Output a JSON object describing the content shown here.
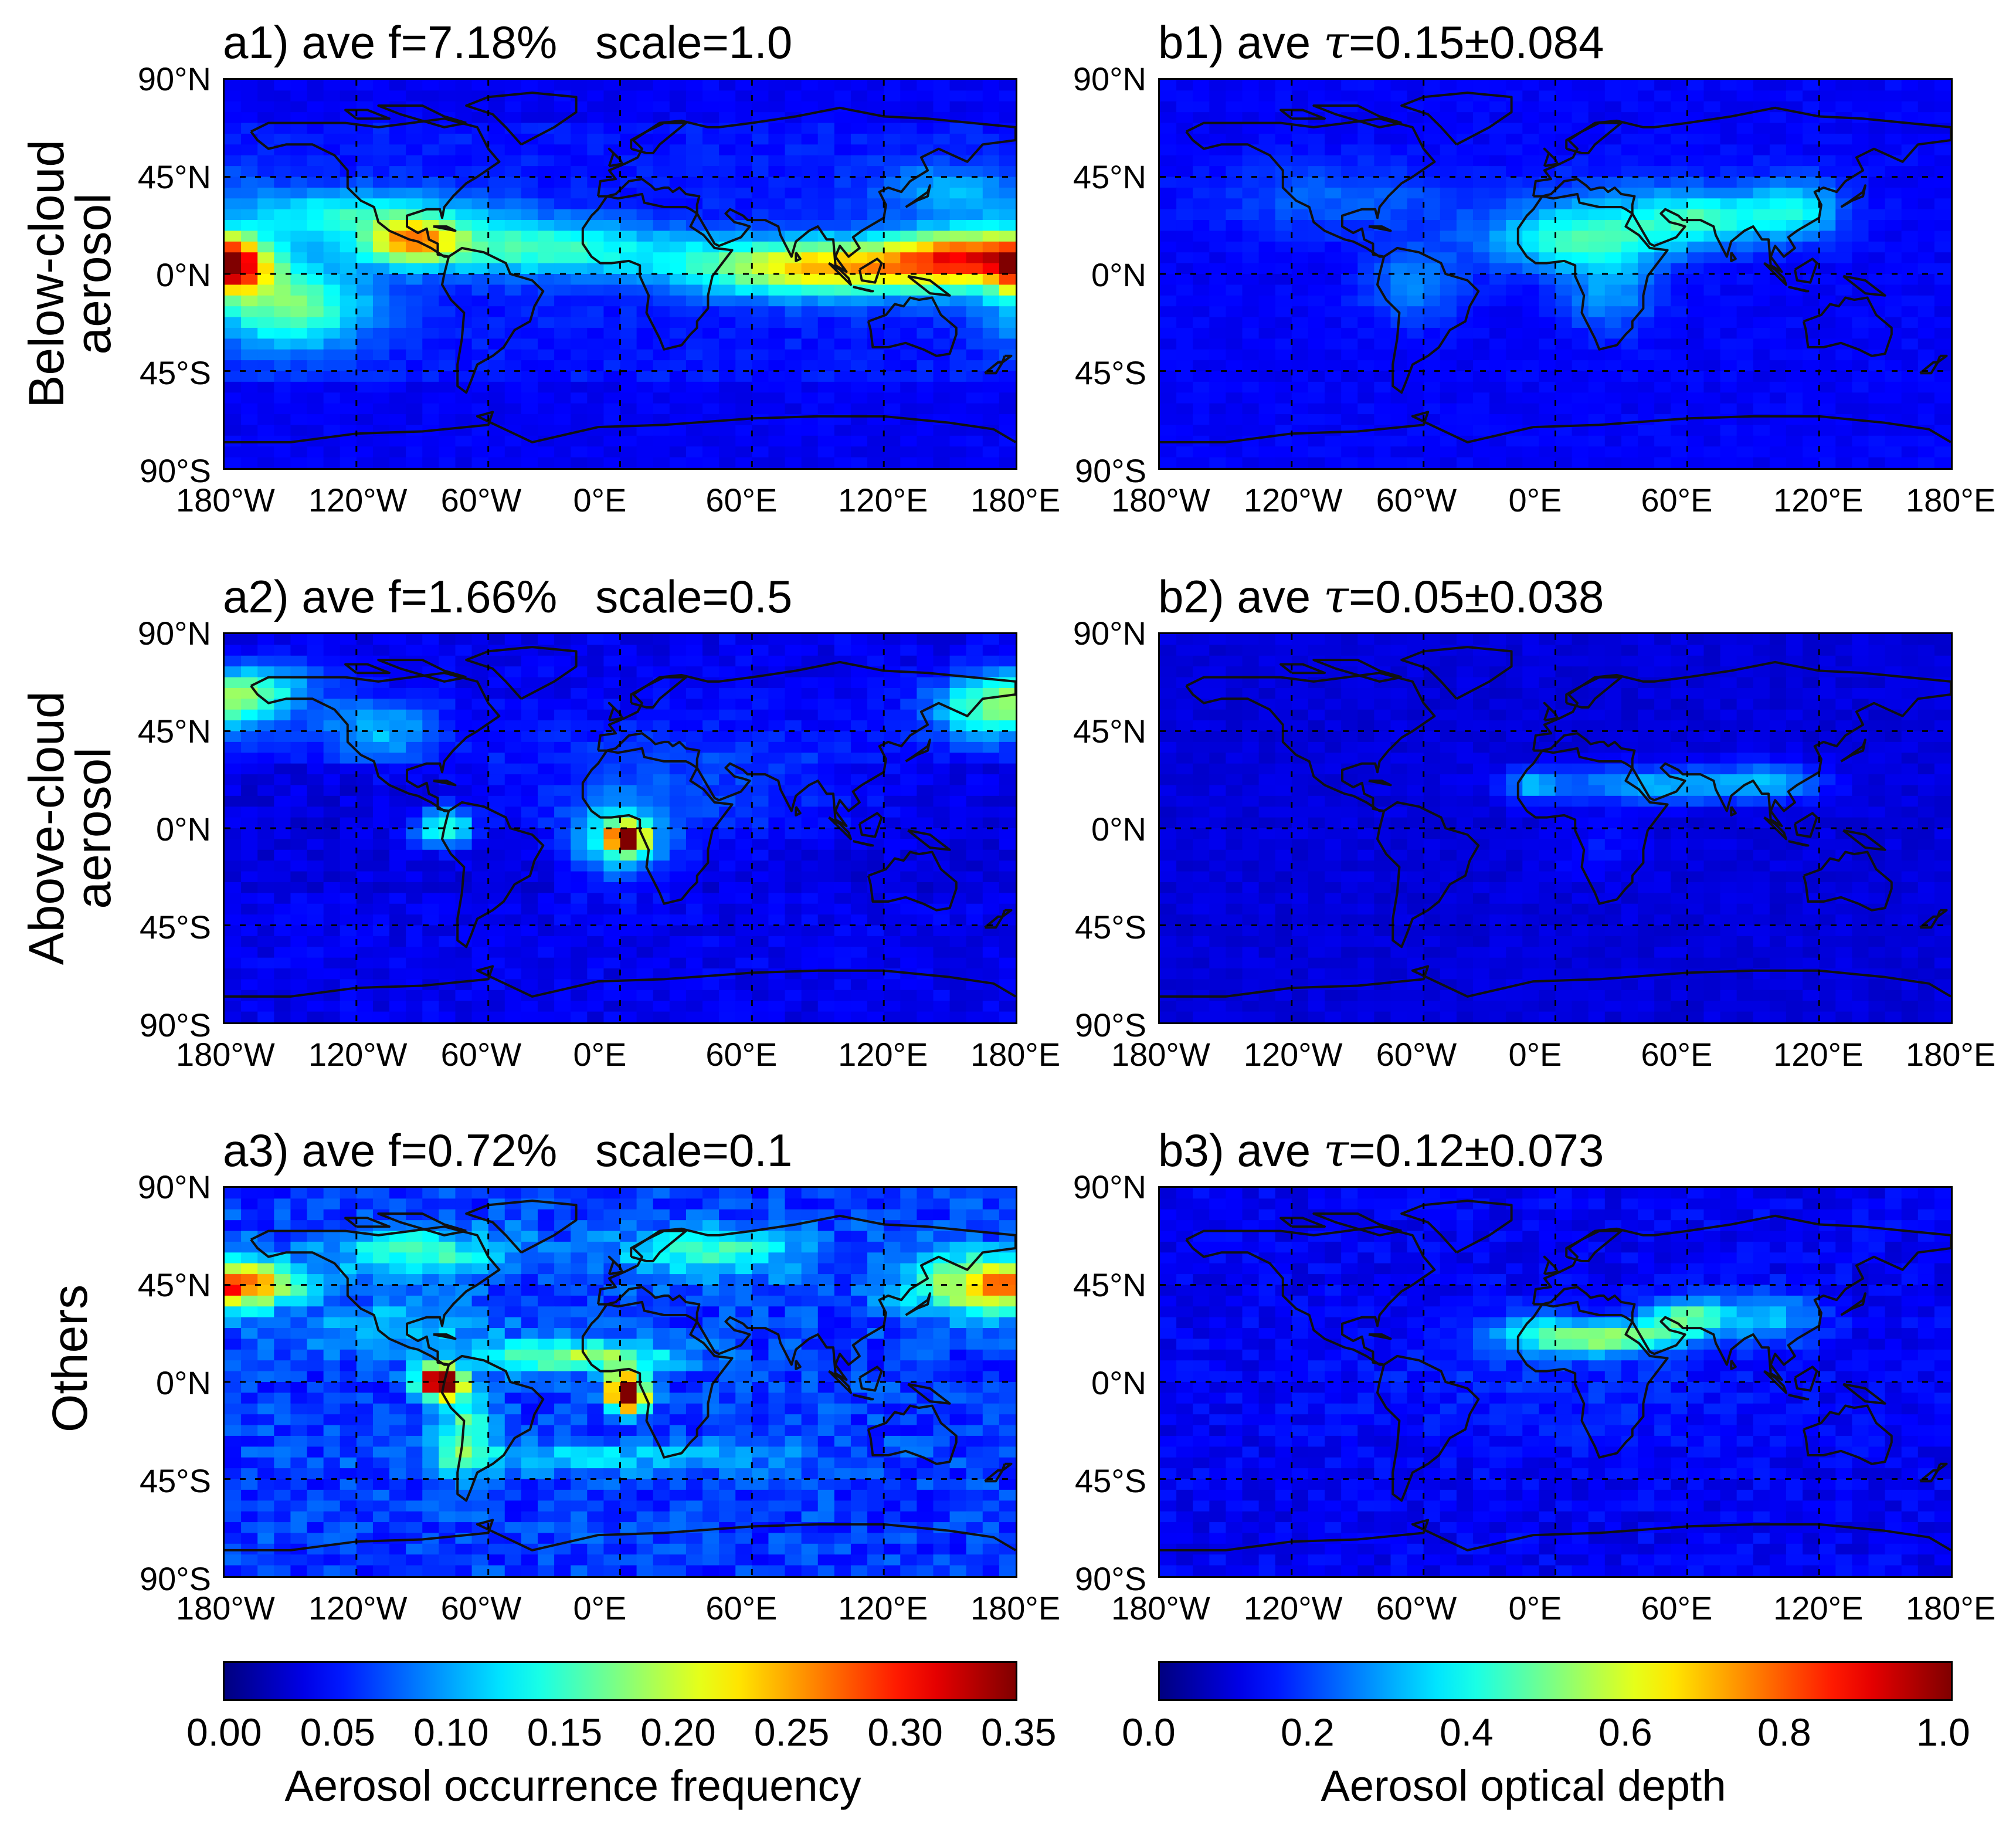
{
  "panels": [
    {
      "id": "a1",
      "col": "a",
      "row": 0,
      "title": "a1) ave f=7.18%   scale=1.0",
      "type": "frequency",
      "pattern": "below"
    },
    {
      "id": "b1",
      "col": "b",
      "row": 0,
      "title_prefix": "b1) ave ",
      "title_tau": "τ",
      "title_suffix": "=0.15±0.084",
      "type": "aod",
      "pattern": "below_aod"
    },
    {
      "id": "a2",
      "col": "a",
      "row": 1,
      "title": "a2) ave f=1.66%   scale=0.5",
      "type": "frequency",
      "pattern": "above"
    },
    {
      "id": "b2",
      "col": "b",
      "row": 1,
      "title_prefix": "b2) ave ",
      "title_tau": "τ",
      "title_suffix": "=0.05±0.038",
      "type": "aod",
      "pattern": "above_aod"
    },
    {
      "id": "a3",
      "col": "a",
      "row": 2,
      "title": "a3) ave f=0.72%   scale=0.1",
      "type": "frequency",
      "pattern": "others"
    },
    {
      "id": "b3",
      "col": "b",
      "row": 2,
      "title_prefix": "b3) ave ",
      "title_tau": "τ",
      "title_suffix": "=0.12±0.073",
      "type": "aod",
      "pattern": "others_aod"
    }
  ],
  "row_labels": [
    {
      "line1": "Below-cloud",
      "line2": "aerosol"
    },
    {
      "line1": "Above-cloud",
      "line2": "aerosol"
    },
    {
      "line1": "Others",
      "line2": ""
    }
  ],
  "lat_ticks": [
    "90°N",
    "45°N",
    "0°N",
    "45°S",
    "90°S"
  ],
  "lon_ticks": [
    "180°W",
    "120°W",
    "60°W",
    "0°E",
    "60°E",
    "120°E",
    "180°E"
  ],
  "colorbars": [
    {
      "title": "Aerosol occurrence frequency",
      "ticks": [
        "0.00",
        "0.05",
        "0.10",
        "0.15",
        "0.20",
        "0.25",
        "0.30",
        "0.35"
      ],
      "range": [
        0,
        0.35
      ]
    },
    {
      "title": "Aerosol optical depth",
      "ticks": [
        "0.0",
        "0.2",
        "0.4",
        "0.6",
        "0.8",
        "1.0"
      ],
      "range": [
        0,
        1.0
      ]
    }
  ],
  "colormap": "jet",
  "chart_data": {
    "type": "heatmap",
    "grid_resolution_deg": [
      7.5,
      5
    ],
    "lon_range": [
      -180,
      180
    ],
    "lat_range": [
      -90,
      90
    ],
    "features": {
      "below": [
        {
          "desc": "tropical maritime belt",
          "lat": [
            -15,
            20
          ],
          "peak_value": 0.35
        }
      ],
      "above": [
        {
          "desc": "southeast Atlantic hotspot",
          "lon": 5,
          "lat": -5,
          "peak_value": 0.35
        }
      ],
      "others": [
        {
          "desc": "central Africa hotspot",
          "lon": 5,
          "lat": -5,
          "peak_value": 0.35
        },
        {
          "desc": "northern South America hotspot",
          "lon": -80,
          "lat": 0,
          "peak_value": 0.35
        }
      ]
    }
  }
}
